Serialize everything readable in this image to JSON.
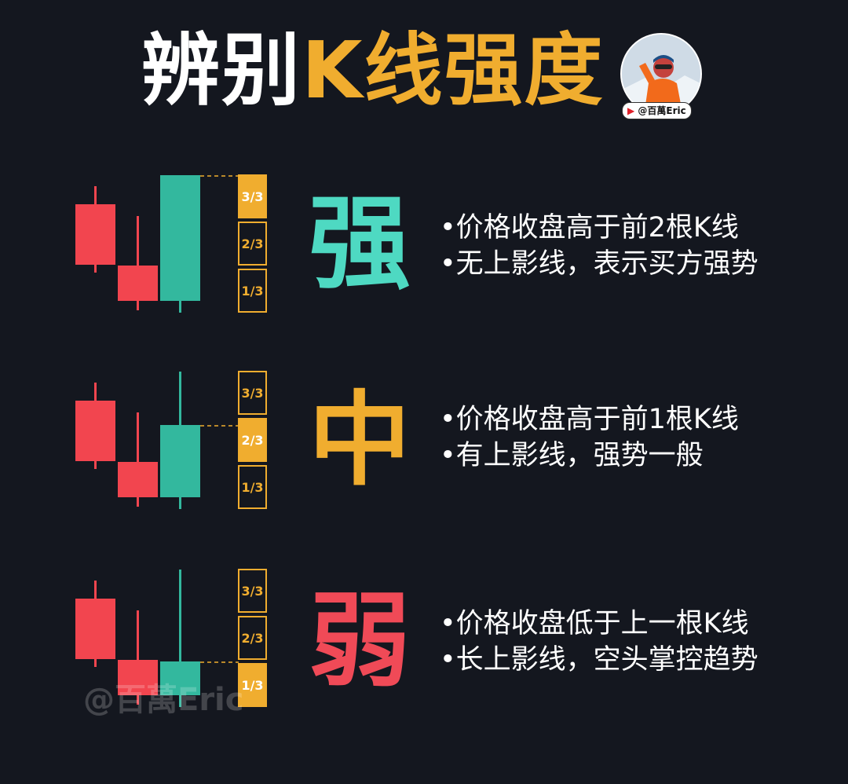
{
  "title": {
    "part1": "辨别",
    "part2": "K线强度"
  },
  "handle": "@百萬Eric",
  "box_labels": [
    "3/3",
    "2/3",
    "1/3"
  ],
  "colors": {
    "bullish": "#33b89e",
    "bearish": "#f2454f",
    "accent": "#f0ad2f",
    "strong_char": "#4ed9c2",
    "medium_char": "#f0ad2f",
    "weak_char": "#f04a57"
  },
  "sections": [
    {
      "id": "strong",
      "char": "强",
      "close_level": "3/3",
      "lines": [
        "•价格收盘高于前2根K线",
        "•无上影线，表示买方强势"
      ]
    },
    {
      "id": "medium",
      "char": "中",
      "close_level": "2/3",
      "lines": [
        "•价格收盘高于前1根K线",
        "•有上影线，强势一般"
      ]
    },
    {
      "id": "weak",
      "char": "弱",
      "close_level": "1/3",
      "lines": [
        "•价格收盘低于上一根K线",
        "•长上影线，空头掌控趋势"
      ]
    }
  ],
  "watermark": "@百萬Eric"
}
